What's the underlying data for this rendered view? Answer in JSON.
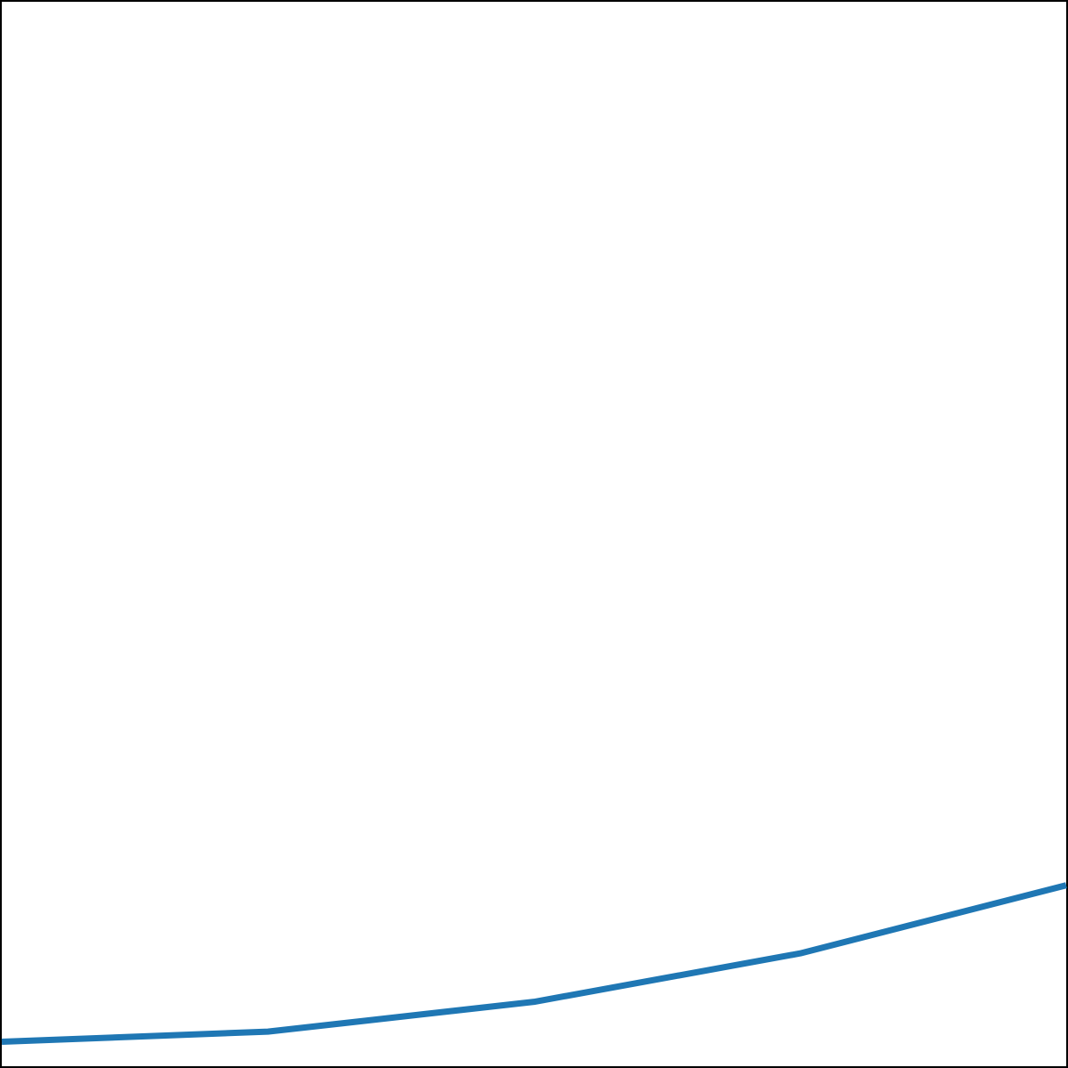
{
  "chart_data": {
    "type": "line",
    "x": [
      0,
      1,
      2,
      3,
      4
    ],
    "series": [
      {
        "values": [
          4.6,
          6.5,
          12.1,
          21.2,
          34.0
        ],
        "color": "#1f77b4"
      }
    ],
    "xlim": [
      0,
      4
    ],
    "ylim": [
      0,
      200
    ],
    "grid": false,
    "axes_frame": true,
    "tick_labels_visible": false,
    "frame_color": "#000000"
  }
}
